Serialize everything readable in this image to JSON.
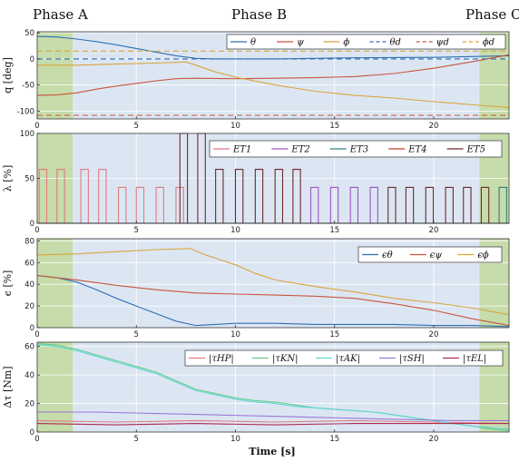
{
  "phases": [
    {
      "label": "Phase A",
      "x_start": 0,
      "x_end": 1.8,
      "color": "#c6dcaa"
    },
    {
      "label": "Phase B",
      "x_start": 1.8,
      "x_end": 22.3,
      "color": "#dce6f3"
    },
    {
      "label": "Phase C",
      "x_start": 22.3,
      "x_end": 23.8,
      "color": "#c6dcaa"
    }
  ],
  "chart_data": [
    {
      "type": "line",
      "ylabel": "q [deg]",
      "xlim": [
        0,
        23.8
      ],
      "ylim": [
        -115,
        52
      ],
      "yticks": [
        50,
        0,
        -50,
        -100
      ],
      "xticks": [
        0,
        5,
        10,
        15,
        20
      ],
      "grid": true,
      "legend_position": "top-right",
      "legend_columns": 6,
      "series": [
        {
          "name": "θ",
          "color": "#2e6fb4",
          "style": "solid",
          "points": [
            [
              0,
              43
            ],
            [
              1,
              42
            ],
            [
              2,
              38
            ],
            [
              3,
              33
            ],
            [
              4,
              27
            ],
            [
              5,
              20
            ],
            [
              6,
              13
            ],
            [
              7,
              6
            ],
            [
              8,
              1
            ],
            [
              9,
              0
            ],
            [
              12,
              0
            ],
            [
              16,
              2
            ],
            [
              20,
              3
            ],
            [
              23.8,
              6
            ]
          ]
        },
        {
          "name": "ψ",
          "color": "#c8553d",
          "style": "solid",
          "points": [
            [
              0,
              -70
            ],
            [
              1,
              -69
            ],
            [
              2,
              -65
            ],
            [
              3,
              -58
            ],
            [
              4,
              -52
            ],
            [
              5,
              -47
            ],
            [
              6,
              -42
            ],
            [
              7,
              -38
            ],
            [
              8,
              -37
            ],
            [
              10,
              -38
            ],
            [
              12,
              -37
            ],
            [
              14,
              -36
            ],
            [
              16,
              -34
            ],
            [
              18,
              -28
            ],
            [
              20,
              -18
            ],
            [
              22,
              -5
            ],
            [
              23.8,
              8
            ]
          ]
        },
        {
          "name": "ϕ",
          "color": "#d9a53b",
          "style": "solid",
          "points": [
            [
              0,
              -12
            ],
            [
              2,
              -12
            ],
            [
              4,
              -10
            ],
            [
              6,
              -8
            ],
            [
              7.5,
              -6
            ],
            [
              8,
              -12
            ],
            [
              9,
              -25
            ],
            [
              10,
              -35
            ],
            [
              12,
              -50
            ],
            [
              14,
              -62
            ],
            [
              16,
              -70
            ],
            [
              18,
              -75
            ],
            [
              20,
              -82
            ],
            [
              22,
              -88
            ],
            [
              23.8,
              -93
            ]
          ]
        },
        {
          "name": "θ_d",
          "color": "#2e6fb4",
          "style": "dashed",
          "points": [
            [
              0,
              0
            ],
            [
              23.8,
              0
            ]
          ]
        },
        {
          "name": "ψ_d",
          "color": "#c8553d",
          "style": "dashed",
          "points": [
            [
              0,
              -108
            ],
            [
              23.8,
              -108
            ]
          ]
        },
        {
          "name": "ϕ_d",
          "color": "#d9a53b",
          "style": "dashed",
          "points": [
            [
              0,
              15
            ],
            [
              23.8,
              15
            ]
          ]
        }
      ],
      "legend_labels": [
        "θ",
        "ψ",
        "ϕ",
        "θd",
        "ψd",
        "ϕd"
      ]
    },
    {
      "type": "line",
      "ylabel": "λ [%]",
      "xlim": [
        0,
        23.8
      ],
      "ylim": [
        0,
        100
      ],
      "yticks": [
        100,
        50,
        0
      ],
      "xticks": [
        0,
        5,
        10,
        15,
        20
      ],
      "grid": true,
      "legend_position": "top-right",
      "legend_columns": 5,
      "pulse_width": 0.38,
      "series": [
        {
          "name": "ET1",
          "color": "#e07b80",
          "pulses": [
            [
              0.1,
              60
            ],
            [
              1.0,
              60
            ],
            [
              2.2,
              60
            ],
            [
              3.1,
              60
            ],
            [
              4.1,
              40
            ],
            [
              5.0,
              40
            ],
            [
              6.0,
              40
            ],
            [
              7.0,
              40
            ]
          ]
        },
        {
          "name": "ET2",
          "color": "#9a55c4",
          "pulses": [
            [
              13.8,
              40
            ],
            [
              14.8,
              40
            ],
            [
              15.8,
              40
            ],
            [
              16.8,
              40
            ]
          ]
        },
        {
          "name": "ET3",
          "color": "#2f7f86",
          "pulses": [
            [
              23.3,
              40
            ]
          ]
        },
        {
          "name": "ET4",
          "color": "#c04030",
          "pulses": []
        },
        {
          "name": "ET5",
          "color": "#6b2a2a",
          "pulses": [
            [
              7.2,
              100
            ],
            [
              8.1,
              100
            ],
            [
              9.0,
              60
            ],
            [
              10.0,
              60
            ],
            [
              11.0,
              60
            ],
            [
              12.0,
              60
            ],
            [
              12.9,
              60
            ],
            [
              17.7,
              40
            ],
            [
              18.6,
              40
            ],
            [
              19.6,
              40
            ],
            [
              20.6,
              40
            ],
            [
              21.5,
              40
            ],
            [
              22.4,
              40
            ]
          ]
        }
      ],
      "legend_labels": [
        "ET1",
        "ET2",
        "ET3",
        "ET4",
        "ET5"
      ]
    },
    {
      "type": "line",
      "ylabel": "ϵ [%]",
      "xlim": [
        0,
        23.8
      ],
      "ylim": [
        0,
        82
      ],
      "yticks": [
        80,
        60,
        40,
        20,
        0
      ],
      "xticks": [
        0,
        5,
        10,
        15,
        20
      ],
      "grid": true,
      "legend_position": "top-right",
      "legend_columns": 3,
      "series": [
        {
          "name": "ϵ_θ",
          "color": "#2e6fb4",
          "points": [
            [
              0,
              48
            ],
            [
              1,
              46
            ],
            [
              2,
              42
            ],
            [
              3,
              35
            ],
            [
              4,
              27
            ],
            [
              5,
              20
            ],
            [
              6,
              13
            ],
            [
              7,
              6
            ],
            [
              8,
              2
            ],
            [
              9,
              3
            ],
            [
              10,
              4
            ],
            [
              12,
              4
            ],
            [
              14,
              3
            ],
            [
              16,
              3
            ],
            [
              18,
              3
            ],
            [
              20,
              2
            ],
            [
              22,
              2
            ],
            [
              23.8,
              1
            ]
          ]
        },
        {
          "name": "ϵ_ψ",
          "color": "#c8553d",
          "points": [
            [
              0,
              48
            ],
            [
              2,
              44
            ],
            [
              4,
              39
            ],
            [
              6,
              35
            ],
            [
              8,
              32
            ],
            [
              10,
              31
            ],
            [
              12,
              30
            ],
            [
              14,
              29
            ],
            [
              16,
              27
            ],
            [
              18,
              22
            ],
            [
              20,
              16
            ],
            [
              22,
              8
            ],
            [
              23.8,
              2
            ]
          ]
        },
        {
          "name": "ϵ_ϕ",
          "color": "#d9a53b",
          "points": [
            [
              0,
              67
            ],
            [
              2,
              68
            ],
            [
              4,
              70
            ],
            [
              6,
              72
            ],
            [
              7.7,
              73
            ],
            [
              8.5,
              67
            ],
            [
              10,
              58
            ],
            [
              11,
              50
            ],
            [
              12,
              44
            ],
            [
              14,
              38
            ],
            [
              16,
              33
            ],
            [
              18,
              27
            ],
            [
              20,
              23
            ],
            [
              22,
              18
            ],
            [
              23.8,
              12
            ]
          ]
        }
      ],
      "legend_labels": [
        "ϵθ",
        "ϵψ",
        "ϵϕ"
      ]
    },
    {
      "type": "line",
      "ylabel": "Δτ [Nm]",
      "xlabel": "Time [s]",
      "xlim": [
        0,
        23.8
      ],
      "ylim": [
        0,
        63
      ],
      "yticks": [
        60,
        40,
        20,
        0
      ],
      "xticks": [
        0,
        5,
        10,
        15,
        20
      ],
      "grid": true,
      "legend_position": "top-right",
      "legend_columns": 5,
      "series": [
        {
          "name": "|τ_HP|",
          "color": "#e07b80",
          "points": [
            [
              0,
              8
            ],
            [
              4,
              7
            ],
            [
              8,
              8
            ],
            [
              12,
              7
            ],
            [
              16,
              8
            ],
            [
              20,
              7
            ],
            [
              23.8,
              6
            ]
          ]
        },
        {
          "name": "|τ_KN|",
          "color": "#66cc88",
          "points": [
            [
              0,
              62
            ],
            [
              1,
              61
            ],
            [
              2,
              58
            ],
            [
              3,
              54
            ],
            [
              4,
              50
            ],
            [
              5,
              46
            ],
            [
              6,
              42
            ],
            [
              7,
              36
            ],
            [
              8,
              30
            ],
            [
              9,
              27
            ],
            [
              10,
              24
            ],
            [
              11,
              22
            ],
            [
              12,
              21
            ],
            [
              13,
              19
            ],
            [
              14,
              17
            ],
            [
              15,
              16
            ],
            [
              16,
              15
            ],
            [
              17,
              14
            ],
            [
              18,
              12
            ],
            [
              19,
              10
            ],
            [
              20,
              8
            ],
            [
              21,
              6
            ],
            [
              22,
              4
            ],
            [
              23,
              2
            ],
            [
              23.8,
              1
            ]
          ]
        },
        {
          "name": "|τ_AK|",
          "color": "#5fd6d6",
          "points": [
            [
              0,
              61
            ],
            [
              1,
              60
            ],
            [
              2,
              57
            ],
            [
              3,
              53
            ],
            [
              4,
              49
            ],
            [
              5,
              45
            ],
            [
              6,
              41
            ],
            [
              7,
              35
            ],
            [
              8,
              29
            ],
            [
              9,
              26
            ],
            [
              10,
              23
            ],
            [
              11,
              21
            ],
            [
              12,
              20
            ],
            [
              13,
              18
            ],
            [
              14,
              17
            ],
            [
              15,
              16
            ],
            [
              16,
              15
            ],
            [
              17,
              14
            ],
            [
              18,
              12
            ],
            [
              19,
              10
            ],
            [
              20,
              8
            ],
            [
              21,
              6
            ],
            [
              22,
              4
            ],
            [
              23,
              3
            ],
            [
              23.8,
              2
            ]
          ]
        },
        {
          "name": "|τ_SH|",
          "color": "#9a78d6",
          "points": [
            [
              0,
              14
            ],
            [
              3,
              14
            ],
            [
              6,
              13
            ],
            [
              9,
              12
            ],
            [
              12,
              11
            ],
            [
              15,
              10
            ],
            [
              18,
              9
            ],
            [
              21,
              8
            ],
            [
              23.8,
              8
            ]
          ]
        },
        {
          "name": "|τ_EL|",
          "color": "#b02a55",
          "points": [
            [
              0,
              6
            ],
            [
              4,
              5
            ],
            [
              8,
              6
            ],
            [
              12,
              5
            ],
            [
              16,
              6
            ],
            [
              20,
              6
            ],
            [
              23.8,
              6
            ]
          ]
        }
      ],
      "legend_labels": [
        "|τHP|",
        "|τKN|",
        "|τAK|",
        "|τSH|",
        "|τEL|"
      ]
    }
  ]
}
